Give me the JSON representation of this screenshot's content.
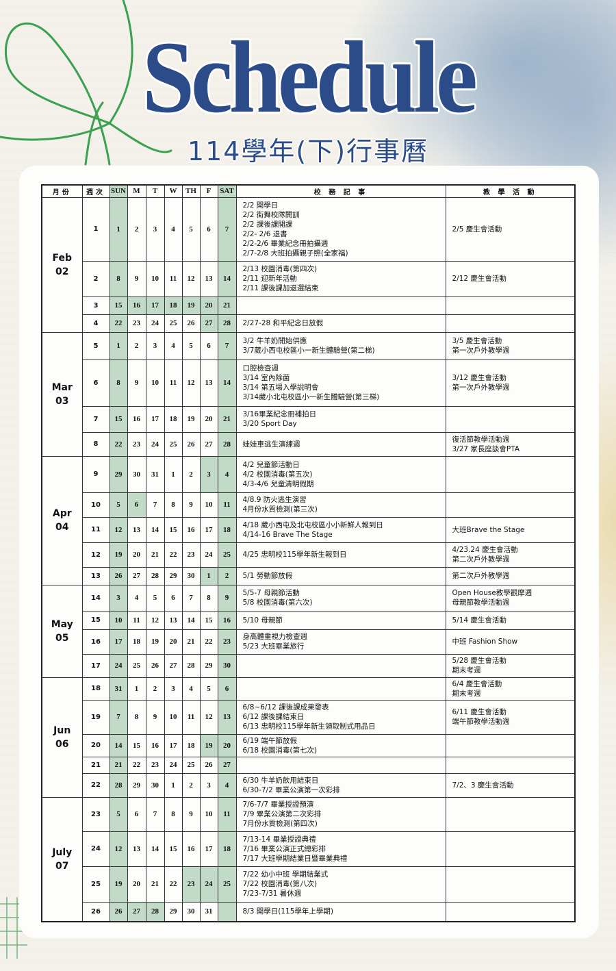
{
  "header": {
    "title": "Schedule",
    "subtitle": "114學年(下)行事曆"
  },
  "colors": {
    "title": "#2b4c89",
    "highlight": "#c2dbc9",
    "doodle": "#3aa14f"
  },
  "table": {
    "columns": [
      "月份",
      "週次",
      "SUN",
      "M",
      "T",
      "W",
      "TH",
      "F",
      "SAT",
      "校 務 記 事",
      "教 學 活 動"
    ],
    "months": [
      {
        "name": "Feb",
        "num": "02",
        "weeks": [
          {
            "week": "1",
            "days": [
              "1",
              "2",
              "3",
              "4",
              "5",
              "6",
              "7"
            ],
            "extra_highlight": [],
            "notes": [
              "2/2 開學日",
              "2/2 街舞校隊開訓",
              "2/2 課後課開課",
              "2/2- 2/6 退書",
              "2/2-2/6 畢業紀念冊拍攝週",
              "2/7-2/8 大班拍攝親子照(全家福)"
            ],
            "activities": [
              "2/5 慶生會活動"
            ]
          },
          {
            "week": "2",
            "days": [
              "8",
              "9",
              "10",
              "11",
              "12",
              "13",
              "14"
            ],
            "extra_highlight": [],
            "notes": [
              "2/13 校園消毒(第四次)",
              "2/11 迎新年活動",
              "2/11 課後課加退選結束"
            ],
            "activities": [
              "2/12 慶生會活動"
            ]
          },
          {
            "week": "3",
            "days": [
              "15",
              "16",
              "17",
              "18",
              "19",
              "20",
              "21"
            ],
            "extra_highlight": [
              1,
              2,
              3,
              4,
              5
            ],
            "notes": [],
            "activities": []
          },
          {
            "week": "4",
            "days": [
              "22",
              "23",
              "24",
              "25",
              "26",
              "27",
              "28"
            ],
            "extra_highlight": [
              5
            ],
            "notes": [
              "2/27-28 和平紀念日放假"
            ],
            "activities": []
          }
        ]
      },
      {
        "name": "Mar",
        "num": "03",
        "weeks": [
          {
            "week": "5",
            "days": [
              "1",
              "2",
              "3",
              "4",
              "5",
              "6",
              "7"
            ],
            "extra_highlight": [],
            "notes": [
              "3/2 牛羊奶開始供應",
              "3/7葳小西屯校區小一新生體驗營(第二梯)"
            ],
            "activities": [
              "3/5 慶生會活動",
              "第一次戶外教學週"
            ]
          },
          {
            "week": "6",
            "days": [
              "8",
              "9",
              "10",
              "11",
              "12",
              "13",
              "14"
            ],
            "extra_highlight": [],
            "notes": [
              "口腔檢查週",
              "3/14 室內除菌",
              "3/14 第五場入學說明會",
              "3/14葳小北屯校區小一新生體驗營(第三梯)"
            ],
            "activities": [
              "3/12 慶生會活動",
              "第一次戶外教學週"
            ]
          },
          {
            "week": "7",
            "days": [
              "15",
              "16",
              "17",
              "18",
              "19",
              "20",
              "21"
            ],
            "extra_highlight": [],
            "notes": [
              "3/16畢業紀念冊補拍日",
              "3/20 Sport Day"
            ],
            "activities": []
          },
          {
            "week": "8",
            "days": [
              "22",
              "23",
              "24",
              "25",
              "26",
              "27",
              "28"
            ],
            "extra_highlight": [],
            "notes": [
              "娃娃車逃生演練週"
            ],
            "activities": [
              "復活節教學活動週",
              "3/27 家長座談會PTA"
            ]
          }
        ]
      },
      {
        "name": "Apr",
        "num": "04",
        "weeks": [
          {
            "week": "9",
            "days": [
              "29",
              "30",
              "31",
              "1",
              "2",
              "3",
              "4"
            ],
            "extra_highlight": [
              5
            ],
            "notes": [
              "4/2 兒童節活動日",
              "4/2 校園消毒(第五次)",
              "4/3-4/6 兒童清明假期"
            ],
            "activities": []
          },
          {
            "week": "10",
            "days": [
              "5",
              "6",
              "7",
              "8",
              "9",
              "10",
              "11"
            ],
            "extra_highlight": [
              1
            ],
            "notes": [
              "4/8.9 防火逃生演習",
              "4月份水質檢測(第三次)"
            ],
            "activities": []
          },
          {
            "week": "11",
            "days": [
              "12",
              "13",
              "14",
              "15",
              "16",
              "17",
              "18"
            ],
            "extra_highlight": [],
            "notes": [
              "4/18 葳小西屯及北屯校區小小新鮮人報到日",
              "4/14-16 Brave The Stage"
            ],
            "activities": [
              "大班Brave the Stage"
            ]
          },
          {
            "week": "12",
            "days": [
              "19",
              "20",
              "21",
              "22",
              "23",
              "24",
              "25"
            ],
            "extra_highlight": [],
            "notes": [
              "4/25 忠明校115學年新生報到日"
            ],
            "activities": [
              "4/23.24 慶生會活動",
              "第二次戶外教學週"
            ]
          },
          {
            "week": "13",
            "days": [
              "26",
              "27",
              "28",
              "29",
              "30",
              "1",
              "2"
            ],
            "extra_highlight": [
              5
            ],
            "notes": [
              "5/1 勞動節放假"
            ],
            "activities": [
              "第二次戶外教學週"
            ]
          }
        ]
      },
      {
        "name": "May",
        "num": "05",
        "weeks": [
          {
            "week": "14",
            "days": [
              "3",
              "4",
              "5",
              "6",
              "7",
              "8",
              "9"
            ],
            "extra_highlight": [],
            "notes": [
              "5/5-7 母親節活動",
              "5/8 校園消毒(第六次)"
            ],
            "activities": [
              "Open House教學觀摩週",
              "母親節教學活動週"
            ]
          },
          {
            "week": "15",
            "days": [
              "10",
              "11",
              "12",
              "13",
              "14",
              "15",
              "16"
            ],
            "extra_highlight": [],
            "notes": [
              "5/10 母親節"
            ],
            "activities": [
              "5/14 慶生會活動"
            ]
          },
          {
            "week": "16",
            "days": [
              "17",
              "18",
              "19",
              "20",
              "21",
              "22",
              "23"
            ],
            "extra_highlight": [],
            "notes": [
              "身高體重視力檢查週",
              "5/23 大班畢業旅行"
            ],
            "activities": [
              "中班 Fashion Show"
            ]
          },
          {
            "week": "17",
            "days": [
              "24",
              "25",
              "26",
              "27",
              "28",
              "29",
              "30"
            ],
            "extra_highlight": [],
            "notes": [],
            "activities": [
              "5/28 慶生會活動",
              "期末考週"
            ]
          }
        ]
      },
      {
        "name": "Jun",
        "num": "06",
        "weeks": [
          {
            "week": "18",
            "days": [
              "31",
              "1",
              "2",
              "3",
              "4",
              "5",
              "6"
            ],
            "extra_highlight": [],
            "notes": [],
            "activities": [
              "6/4 慶生會活動",
              "期末考週"
            ]
          },
          {
            "week": "19",
            "days": [
              "7",
              "8",
              "9",
              "10",
              "11",
              "12",
              "13"
            ],
            "extra_highlight": [],
            "notes": [
              "6/8~6/12 課後課成果發表",
              "6/12 課後課結束日",
              "6/13 忠明校115學年新生領取制式用品日"
            ],
            "activities": [
              "6/11 慶生會活動",
              "端午節教學活動週"
            ]
          },
          {
            "week": "20",
            "days": [
              "14",
              "15",
              "16",
              "17",
              "18",
              "19",
              "20"
            ],
            "extra_highlight": [
              5
            ],
            "notes": [
              "6/19 端午節放假",
              "6/18 校園消毒(第七次)"
            ],
            "activities": []
          },
          {
            "week": "21",
            "days": [
              "21",
              "22",
              "23",
              "24",
              "25",
              "26",
              "27"
            ],
            "extra_highlight": [],
            "notes": [],
            "activities": []
          },
          {
            "week": "22",
            "days": [
              "28",
              "29",
              "30",
              "1",
              "2",
              "3",
              "4"
            ],
            "extra_highlight": [],
            "notes": [
              "6/30 牛羊奶飲用結束日",
              "6/30-7/2 畢業公演第一次彩排"
            ],
            "activities": [
              "7/2、3 慶生會活動"
            ]
          }
        ]
      },
      {
        "name": "July",
        "num": "07",
        "weeks": [
          {
            "week": "23",
            "days": [
              "5",
              "6",
              "7",
              "8",
              "9",
              "10",
              "11"
            ],
            "extra_highlight": [],
            "notes": [
              "7/6-7/7 畢業授證預演",
              "7/9 畢業公演第二次彩排",
              "7月份水質檢測(第四次)"
            ],
            "activities": []
          },
          {
            "week": "24",
            "days": [
              "12",
              "13",
              "14",
              "15",
              "16",
              "17",
              "18"
            ],
            "extra_highlight": [],
            "notes": [
              "7/13-14 畢業授證典禮",
              "7/16 畢業公演正式總彩排",
              "7/17 大班學期結業日暨畢業典禮"
            ],
            "activities": []
          },
          {
            "week": "25",
            "days": [
              "19",
              "20",
              "21",
              "22",
              "23",
              "24",
              "25"
            ],
            "extra_highlight": [
              4,
              5
            ],
            "notes": [
              "7/22 幼小中班 學期結業式",
              "7/22 校園消毒(第八次)",
              "7/23-7/31 暑休週"
            ],
            "activities": []
          },
          {
            "week": "26",
            "days": [
              "26",
              "27",
              "28",
              "29",
              "30",
              "31",
              ""
            ],
            "extra_highlight": [
              1,
              2
            ],
            "notes": [
              "8/3 開學日(115學年上學期)"
            ],
            "activities": []
          }
        ]
      }
    ]
  }
}
